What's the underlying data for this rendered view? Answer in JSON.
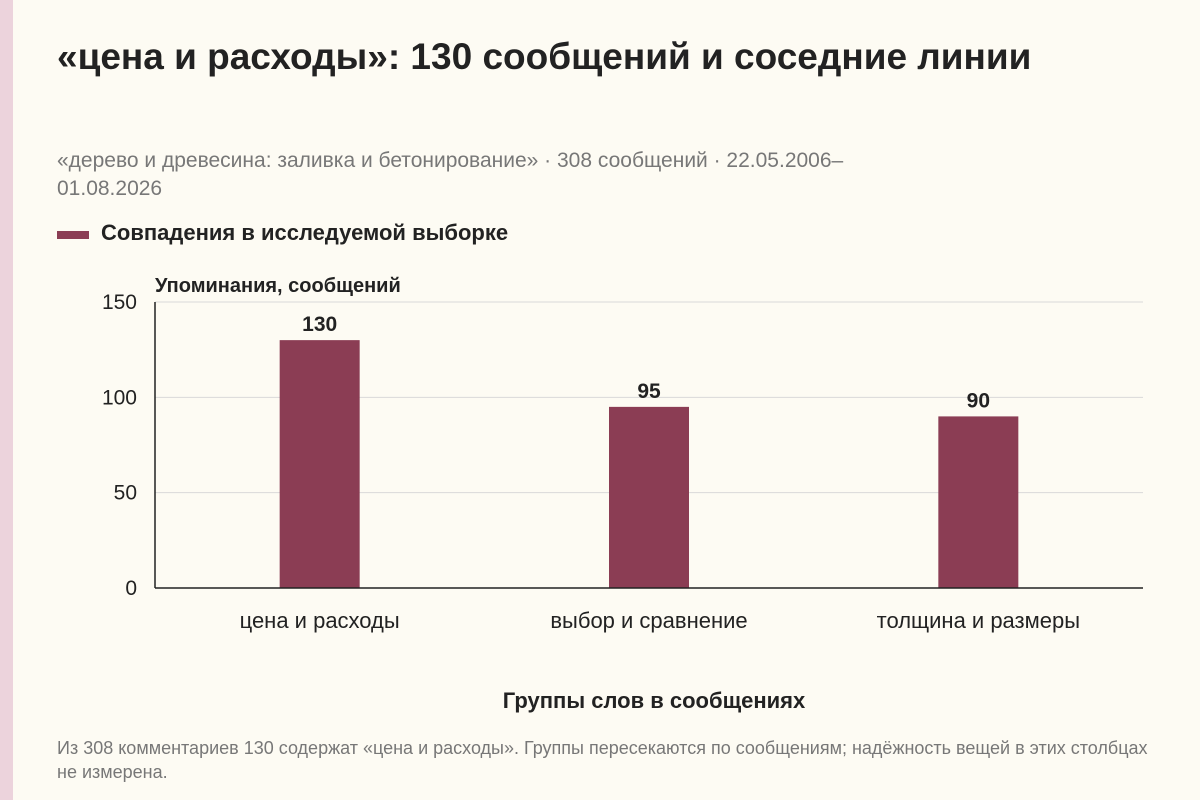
{
  "colors": {
    "background": "#fdfbf3",
    "accent_strip": "#ecd3dc",
    "bar": "#8b3d54",
    "grid": "#d9d9d9",
    "axis": "#222222",
    "text_main": "#222222",
    "text_muted": "#777777"
  },
  "header": {
    "title": "«цена и расходы»: 130 сообщений и соседние линии",
    "subtitle": "«дерево и древесина: заливка и бетонирование» · 308 сообщений · 22.05.2006–01.08.2026"
  },
  "legend": {
    "label": "Совпадения в исследуемой выборке"
  },
  "footer": {
    "note": "Из 308 комментариев 130 содержат «цена и расходы». Группы пересекаются по сообщениям; надёжность вещей в этих столбцах не измерена."
  },
  "chart_data": {
    "type": "bar",
    "categories": [
      "цена и расходы",
      "выбор и сравнение",
      "толщина и размеры"
    ],
    "series": [
      {
        "name": "Совпадения в исследуемой выборке",
        "values": [
          130,
          95,
          90
        ]
      }
    ],
    "ylim": [
      0,
      150
    ],
    "yticks": [
      0,
      50,
      100,
      150
    ],
    "ylabel": "Упоминания, сообщений",
    "xlabel": "Группы слов в сообщениях",
    "grid": true,
    "data_labels": true
  }
}
